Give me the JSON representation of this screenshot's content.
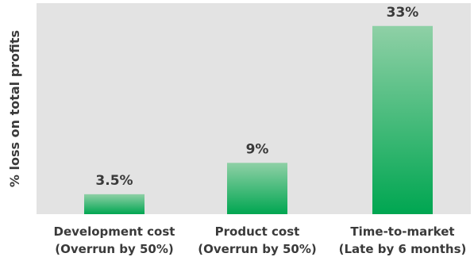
{
  "chart_data": {
    "type": "bar",
    "categories": [
      [
        "Development cost",
        "(Overrun by 50%)"
      ],
      [
        "Product cost",
        "(Overrun by 50%)"
      ],
      [
        "Time-to-market",
        "(Late by 6 months)"
      ]
    ],
    "values": [
      3.5,
      9,
      33
    ],
    "value_labels": [
      "3.5%",
      "9%",
      "33%"
    ],
    "ylabel": "% loss on total profits",
    "ylim": [
      0,
      37
    ],
    "grid": false,
    "legend": "none",
    "colors": {
      "plot_background": "#e3e3e3",
      "bar_top": "#8fd0a6",
      "bar_bottom": "#00a651",
      "text": "#3a3a3a"
    }
  }
}
